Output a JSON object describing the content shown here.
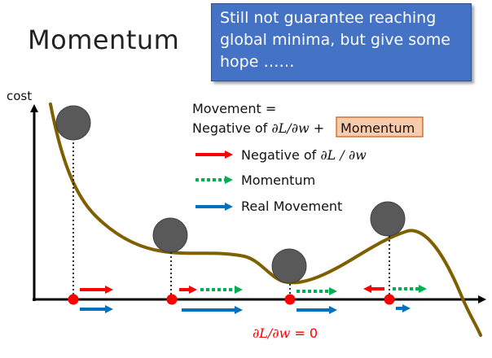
{
  "title": "Momentum",
  "callout": {
    "lines": [
      "Still not guarantee reaching",
      "global minima, but give some",
      "hope ……"
    ]
  },
  "axis": {
    "ylabel": "cost"
  },
  "formula": {
    "line1": "Movement =",
    "prefix": "Negative of ",
    "term": "∂L/∂w",
    "plus": " + ",
    "highlight": "Momentum"
  },
  "legend": [
    {
      "prefix": "Negative of ",
      "math": "∂L / ∂w",
      "color": "#ff0000",
      "style": "solid"
    },
    {
      "prefix": "Momentum",
      "math": "",
      "color": "#00b050",
      "style": "dotted"
    },
    {
      "prefix": "Real Movement",
      "math": "",
      "color": "#0070c0",
      "style": "solid"
    }
  ],
  "bottom_label": {
    "math": "∂L/∂w",
    "suffix": " = 0"
  },
  "colors": {
    "curve": "#7f6000",
    "ball": "#595959",
    "point": "#ff0000",
    "highlight_fill": "#f8cbad",
    "highlight_border": "#c55a11",
    "callout_bg": "#4472c4"
  }
}
